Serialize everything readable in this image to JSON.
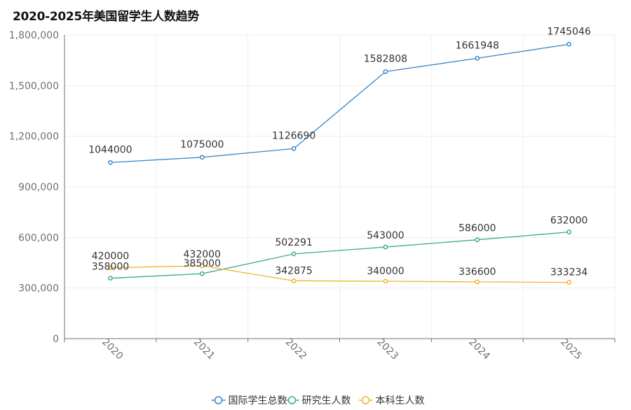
{
  "chart_data": {
    "type": "line",
    "title": "2020-2025年美国留学生人数趋势",
    "categories": [
      "2020",
      "2021",
      "2022",
      "2023",
      "2024",
      "2025"
    ],
    "ylim": [
      0,
      1800000
    ],
    "yticks": [
      0,
      300000,
      600000,
      900000,
      1200000,
      1500000,
      1800000
    ],
    "ytick_labels": [
      "0",
      "300,000",
      "600,000",
      "900,000",
      "1,200,000",
      "1,500,000",
      "1,800,000"
    ],
    "grid": true,
    "legend_position": "bottom-center",
    "series": [
      {
        "name": "国际学生总数",
        "color": "#3a86c8",
        "values": [
          1044000,
          1075000,
          1126690,
          1582808,
          1661948,
          1745046
        ]
      },
      {
        "name": "研究生人数",
        "color": "#3dab83",
        "values": [
          358000,
          385000,
          502291,
          543000,
          586000,
          632000
        ]
      },
      {
        "name": "本科生人数",
        "color": "#f0b429",
        "values": [
          420000,
          432000,
          342875,
          340000,
          336600,
          333234
        ]
      }
    ]
  }
}
